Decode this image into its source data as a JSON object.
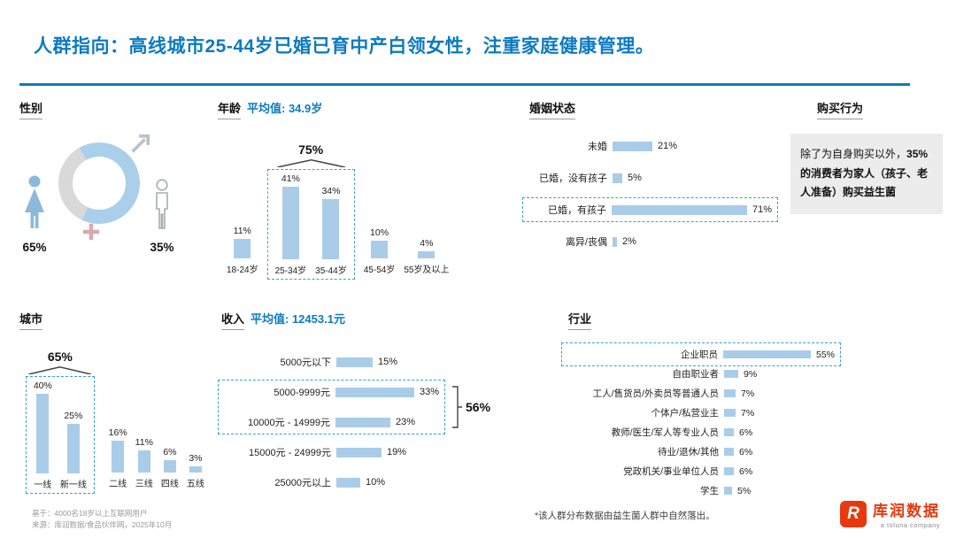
{
  "page": {
    "title": "人群指向：高线城市25-44岁已婚已育中产白领女性，注重家庭健康管理。",
    "footnotes": {
      "basis": "基于：4000名18岁以上互联网用户",
      "source": "来源：库润数据/食品伙伴网，2025年10月",
      "note": "*该人群分布数据由益生菌人群中自然落出。"
    },
    "logo": {
      "name": "库润数据",
      "subtitle": "a toluna company",
      "mark": "R"
    }
  },
  "sections": {
    "gender": {
      "label": "性别",
      "female_pct": "65%",
      "male_pct": "35%"
    },
    "age": {
      "label": "年龄",
      "avg": "平均值: 34.9岁"
    },
    "marital": {
      "label": "婚姻状态"
    },
    "purchase": {
      "label": "购买行为",
      "text_normal": "除了为自身购买以外，",
      "text_bold": "35%的消费者为家人（孩子、老人准备）购买益生菌"
    },
    "city": {
      "label": "城市"
    },
    "income": {
      "label": "收入",
      "avg": "平均值: 12453.1元"
    },
    "industry": {
      "label": "行业"
    }
  },
  "chart_data": [
    {
      "id": "gender",
      "type": "pie",
      "title": "性别",
      "donut": true,
      "labels": [
        "女性",
        "男性"
      ],
      "values": [
        65,
        35
      ],
      "unit": "%",
      "colors": [
        "#aacfea",
        "#d9d9d9"
      ]
    },
    {
      "id": "age",
      "type": "bar",
      "title": "年龄",
      "subtitle": "平均值: 34.9岁",
      "categories": [
        "18-24岁",
        "25-34岁",
        "35-44岁",
        "45-54岁",
        "55岁及以上"
      ],
      "values": [
        11,
        41,
        34,
        10,
        4
      ],
      "unit": "%",
      "ylim": [
        0,
        50
      ],
      "highlight": {
        "label": "75%",
        "from": 1,
        "to": 2
      }
    },
    {
      "id": "marital",
      "type": "bar",
      "orientation": "horizontal",
      "title": "婚姻状态",
      "categories": [
        "未婚",
        "已婚，没有孩子",
        "已婚，有孩子",
        "离异/丧偶"
      ],
      "values": [
        21,
        5,
        71,
        2
      ],
      "unit": "%",
      "highlight": {
        "from": 2,
        "to": 2
      }
    },
    {
      "id": "city",
      "type": "bar",
      "title": "城市",
      "categories": [
        "一线",
        "新一线",
        "二线",
        "三线",
        "四线",
        "五线"
      ],
      "values": [
        40,
        25,
        16,
        11,
        6,
        3
      ],
      "unit": "%",
      "ylim": [
        0,
        45
      ],
      "highlight": {
        "label": "65%",
        "from": 0,
        "to": 1
      }
    },
    {
      "id": "income",
      "type": "bar",
      "orientation": "horizontal",
      "title": "收入",
      "subtitle": "平均值: 12453.1元",
      "categories": [
        "5000元以下",
        "5000-9999元",
        "10000元 - 14999元",
        "15000元 - 24999元",
        "25000元以上"
      ],
      "values": [
        15,
        33,
        23,
        19,
        10
      ],
      "unit": "%",
      "highlight": {
        "label": "56%",
        "from": 1,
        "to": 2,
        "side": "right"
      }
    },
    {
      "id": "industry",
      "type": "bar",
      "orientation": "horizontal",
      "title": "行业",
      "categories": [
        "企业职员",
        "自由职业者",
        "工人/售货员/外卖员等普通人员",
        "个体户/私营业主",
        "教师/医生/军人等专业人员",
        "待业/退休/其他",
        "党政机关/事业单位人员",
        "学生"
      ],
      "values": [
        55,
        9,
        7,
        7,
        6,
        6,
        6,
        5
      ],
      "unit": "%",
      "highlight": {
        "from": 0,
        "to": 0
      }
    }
  ],
  "colors": {
    "accent": "#0d7ac0",
    "bar": "#a9cde9",
    "highlight_border": "#3aa3c4",
    "logo_red": "#e8380d"
  }
}
